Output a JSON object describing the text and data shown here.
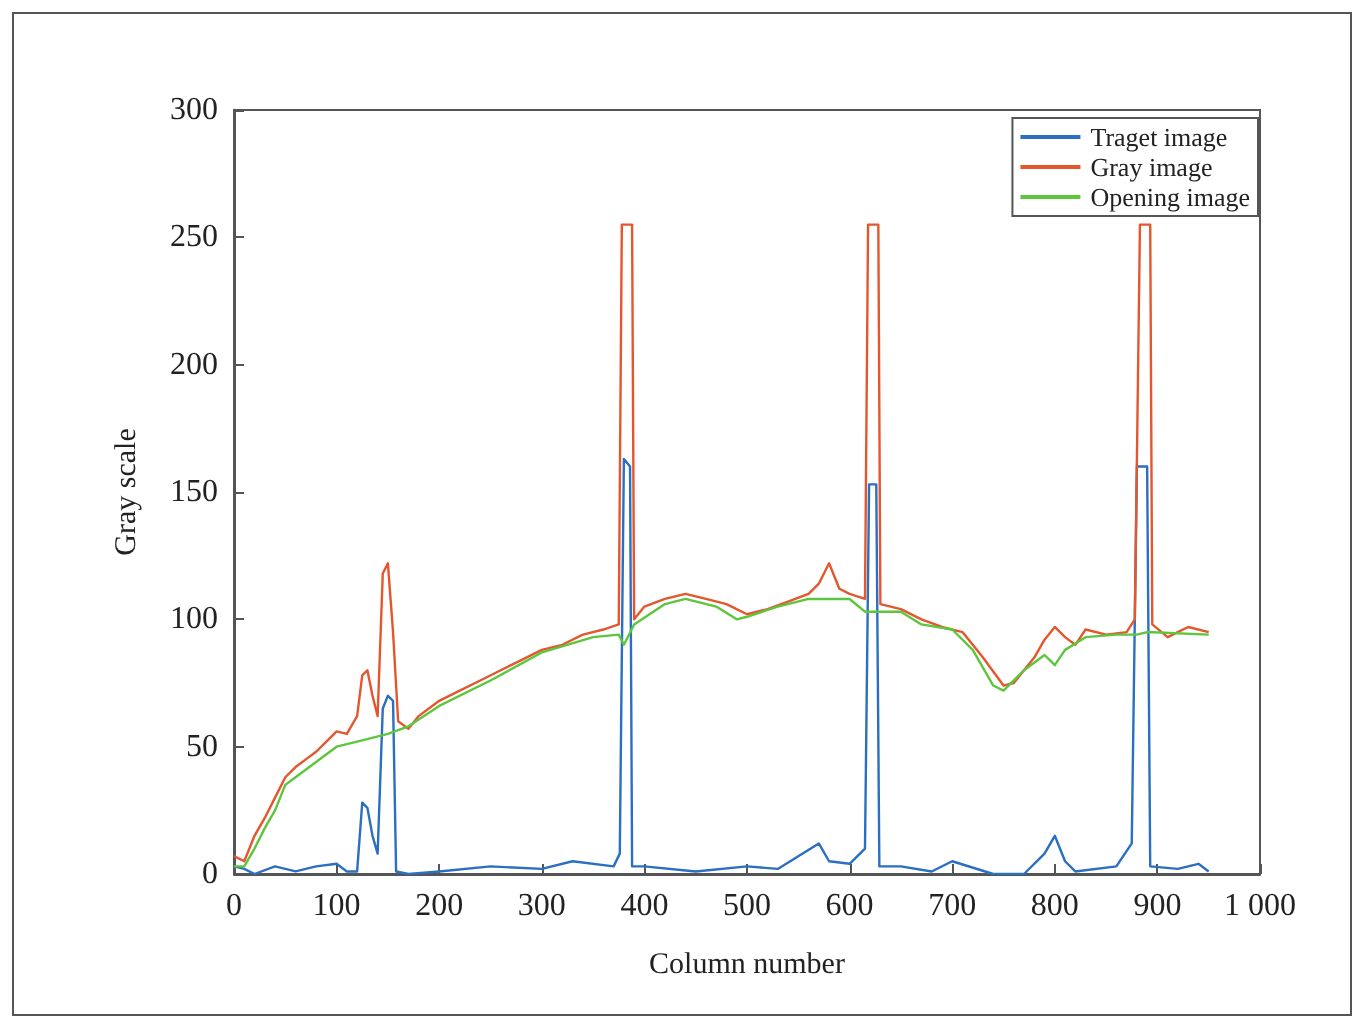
{
  "chart_data": {
    "type": "line",
    "xlabel": "Column number",
    "ylabel": "Gray scale",
    "xlim": [
      0,
      1000
    ],
    "xticks": [
      0,
      100,
      200,
      300,
      400,
      500,
      600,
      700,
      800,
      900,
      {
        "value": 1000,
        "label": "1 000"
      }
    ],
    "ylim": [
      0,
      300
    ],
    "yticks": [
      0,
      50,
      100,
      150,
      200,
      250,
      300
    ],
    "legend": "top right",
    "grid": false,
    "marker": "none",
    "line_style": "solid",
    "x": [
      0,
      10,
      20,
      40,
      60,
      80,
      100,
      110,
      120,
      125,
      130,
      135,
      140,
      145,
      150,
      155,
      158,
      170,
      200,
      250,
      300,
      330,
      370,
      376,
      380,
      386,
      388,
      400,
      450,
      500,
      530,
      570,
      580,
      600,
      615,
      619,
      626,
      629,
      650,
      680,
      700,
      740,
      770,
      790,
      800,
      810,
      820,
      860,
      875,
      880,
      890,
      893,
      920,
      940,
      950
    ],
    "series": [
      {
        "name": "Traget image",
        "color": "#2b6fc2",
        "values": [
          3,
          2,
          0,
          3,
          1,
          3,
          4,
          1,
          1,
          28,
          26,
          15,
          8,
          65,
          70,
          68,
          1,
          0,
          1,
          3,
          2,
          5,
          3,
          8,
          163,
          160,
          3,
          3,
          1,
          3,
          2,
          12,
          5,
          4,
          10,
          153,
          153,
          3,
          3,
          1,
          5,
          0,
          0,
          8,
          15,
          5,
          1,
          3,
          12,
          160,
          160,
          3,
          2,
          4,
          1
        ]
      },
      {
        "name": "Gray image",
        "color": "#e4572e",
        "x": [
          0,
          10,
          20,
          30,
          40,
          50,
          60,
          70,
          80,
          90,
          100,
          110,
          120,
          125,
          130,
          135,
          140,
          145,
          150,
          155,
          160,
          170,
          180,
          200,
          220,
          240,
          260,
          280,
          300,
          320,
          340,
          360,
          375,
          378,
          388,
          390,
          400,
          420,
          440,
          460,
          480,
          500,
          520,
          540,
          560,
          570,
          580,
          590,
          600,
          615,
          618,
          628,
          630,
          650,
          670,
          690,
          710,
          730,
          750,
          760,
          780,
          790,
          800,
          810,
          820,
          830,
          850,
          870,
          878,
          883,
          893,
          895,
          910,
          930,
          950
        ],
        "values": [
          7,
          5,
          15,
          22,
          30,
          38,
          42,
          45,
          48,
          52,
          56,
          55,
          62,
          78,
          80,
          70,
          62,
          118,
          122,
          95,
          60,
          57,
          62,
          68,
          72,
          76,
          80,
          84,
          88,
          90,
          94,
          96,
          98,
          255,
          255,
          100,
          105,
          108,
          110,
          108,
          106,
          102,
          104,
          107,
          110,
          114,
          122,
          112,
          110,
          108,
          255,
          255,
          106,
          104,
          100,
          97,
          95,
          85,
          74,
          75,
          85,
          92,
          97,
          93,
          90,
          96,
          94,
          95,
          100,
          255,
          255,
          98,
          93,
          97,
          95
        ]
      },
      {
        "name": "Opening image",
        "color": "#5cc63c",
        "x": [
          0,
          10,
          20,
          30,
          40,
          50,
          60,
          80,
          100,
          120,
          150,
          170,
          200,
          250,
          300,
          350,
          375,
          380,
          390,
          420,
          440,
          470,
          490,
          500,
          530,
          560,
          600,
          615,
          630,
          650,
          670,
          700,
          720,
          740,
          750,
          770,
          790,
          800,
          810,
          830,
          860,
          880,
          890,
          950
        ],
        "values": [
          3,
          3,
          10,
          18,
          25,
          35,
          38,
          44,
          50,
          52,
          55,
          58,
          66,
          76,
          87,
          93,
          94,
          90,
          98,
          106,
          108,
          105,
          100,
          101,
          105,
          108,
          108,
          103,
          103,
          103,
          98,
          96,
          88,
          74,
          72,
          80,
          86,
          82,
          88,
          93,
          94,
          94,
          95,
          94
        ]
      }
    ]
  }
}
